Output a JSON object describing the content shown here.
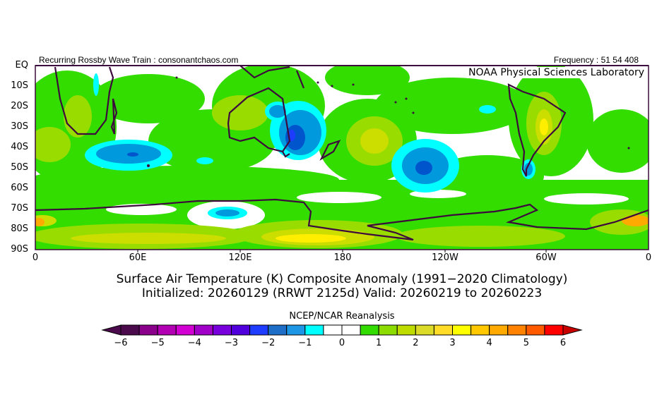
{
  "header": {
    "left": "Recurring Rossby Wave Train : consonantchaos.com",
    "right": "Frequency : 51 54 408",
    "lab": "NOAA Physical Sciences Laboratory"
  },
  "axes": {
    "lat_labels": [
      "EQ",
      "10S",
      "20S",
      "30S",
      "40S",
      "50S",
      "60S",
      "70S",
      "80S",
      "90S"
    ],
    "lon_labels": [
      "0",
      "60E",
      "120E",
      "180",
      "120W",
      "60W",
      "0"
    ]
  },
  "title": {
    "line1": "Surface Air Temperature (K) Composite Anomaly (1991−2020 Climatology)",
    "line2": "Initialized: 20260129 (RRWT 2125d) Valid: 20260219 to 20260223"
  },
  "colorbar": {
    "label": "NCEP/NCAR Reanalysis",
    "ticks": [
      "−6",
      "−5",
      "−4",
      "−3",
      "−2",
      "−1",
      "0",
      "1",
      "2",
      "3",
      "4",
      "5",
      "6"
    ],
    "colors": [
      "#4b0a4b",
      "#8b008b",
      "#b400b4",
      "#d200d2",
      "#a000c8",
      "#7800dc",
      "#5000dc",
      "#1e3cff",
      "#1e6ec8",
      "#1e96e6",
      "#00ffff",
      "#ffffff",
      "#ffffff",
      "#32dc00",
      "#8cdc00",
      "#bedc00",
      "#dcdc28",
      "#ffdc28",
      "#ffff00",
      "#ffc800",
      "#ffaa00",
      "#ff8200",
      "#ff5a00",
      "#ff0000"
    ],
    "left_arrow": "#4b0a4b",
    "right_arrow": "#c80000"
  },
  "map_colors": {
    "green": "#33dd00",
    "yellowgreen": "#99dd00",
    "olive": "#ccdd00",
    "yellow": "#ffee00",
    "orange": "#ffaa00",
    "cyan": "#00ffff",
    "blue": "#0099dd",
    "darkblue": "#0055cc",
    "coast": "#3c0a3c"
  }
}
